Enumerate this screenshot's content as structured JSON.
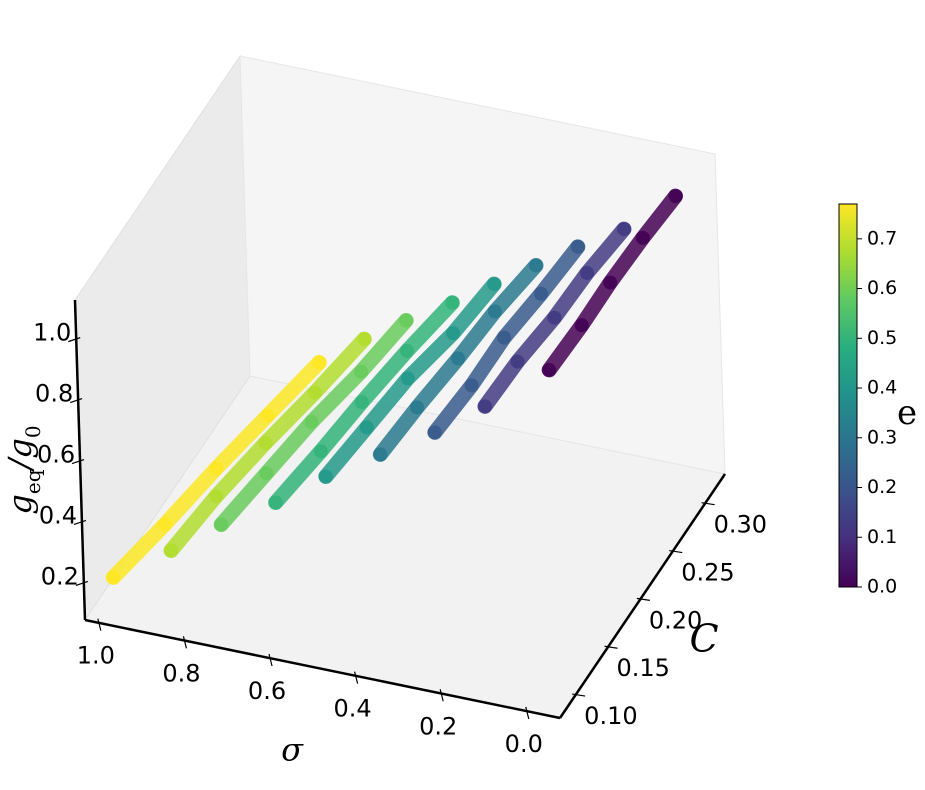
{
  "chart_data": {
    "type": "scatter3d",
    "xlabel": "σ",
    "ylabel": "C",
    "zlabel": [
      "g",
      "eq",
      "/g",
      "0"
    ],
    "colorbar_label": "e",
    "colormap": "viridis",
    "xlim": [
      -0.08,
      1.03
    ],
    "ylim": [
      0.075,
      0.33
    ],
    "zlim": [
      0.08,
      1.13
    ],
    "clim": [
      0,
      0.77
    ],
    "xticks": [
      {
        "value": 0,
        "label": "0.0"
      },
      0.2,
      0.4,
      0.6,
      0.8,
      {
        "value": 1,
        "label": "1.0"
      }
    ],
    "yticks": [
      {
        "value": 0.1,
        "label": "0.10"
      },
      0.15,
      {
        "value": 0.2,
        "label": "0.20"
      },
      0.25,
      {
        "value": 0.3,
        "label": "0.30"
      }
    ],
    "zticks": [
      0.2,
      0.4,
      0.6,
      0.8,
      {
        "value": 1,
        "label": "1.0"
      }
    ],
    "cticks": [
      {
        "value": 0,
        "label": "0.0"
      },
      0.1,
      0.2,
      0.3,
      0.4,
      0.5,
      0.6,
      0.7
    ],
    "series": [
      {
        "c": 0.0,
        "y": 0.32,
        "x": [
          0.31,
          0.23,
          0.16,
          0.08,
          0.0
        ],
        "z": [
          0.34,
          0.51,
          0.67,
          0.84,
          1.0
        ]
      },
      {
        "c": 0.13,
        "y": 0.28,
        "x": [
          0.4,
          0.32,
          0.23,
          0.15,
          0.06
        ],
        "z": [
          0.32,
          0.49,
          0.66,
          0.83,
          1.0
        ]
      },
      {
        "c": 0.22,
        "y": 0.255,
        "x": [
          0.48,
          0.39,
          0.31,
          0.22,
          0.13
        ],
        "z": [
          0.29,
          0.47,
          0.65,
          0.82,
          1.0
        ]
      },
      {
        "c": 0.31,
        "y": 0.23,
        "x": [
          0.57,
          0.48,
          0.38,
          0.29,
          0.19
        ],
        "z": [
          0.27,
          0.45,
          0.64,
          0.82,
          1.0
        ]
      },
      {
        "c": 0.41,
        "y": 0.205,
        "x": [
          0.66,
          0.56,
          0.46,
          0.35,
          0.25
        ],
        "z": [
          0.25,
          0.44,
          0.63,
          0.81,
          1.0
        ]
      },
      {
        "c": 0.5,
        "y": 0.18,
        "x": [
          0.74,
          0.63,
          0.53,
          0.42,
          0.31
        ],
        "z": [
          0.22,
          0.42,
          0.61,
          0.81,
          1.0
        ]
      },
      {
        "c": 0.59,
        "y": 0.155,
        "x": [
          0.83,
          0.72,
          0.61,
          0.49,
          0.38
        ],
        "z": [
          0.2,
          0.4,
          0.6,
          0.8,
          1.0
        ]
      },
      {
        "c": 0.68,
        "y": 0.13,
        "x": [
          0.91,
          0.8,
          0.68,
          0.56,
          0.44
        ],
        "z": [
          0.17,
          0.38,
          0.59,
          0.79,
          1.0
        ]
      },
      {
        "c": 0.77,
        "y": 0.1,
        "x": [
          1.0,
          0.875,
          0.75,
          0.625,
          0.5
        ],
        "z": [
          0.15,
          0.36,
          0.58,
          0.79,
          1.0
        ]
      }
    ]
  }
}
